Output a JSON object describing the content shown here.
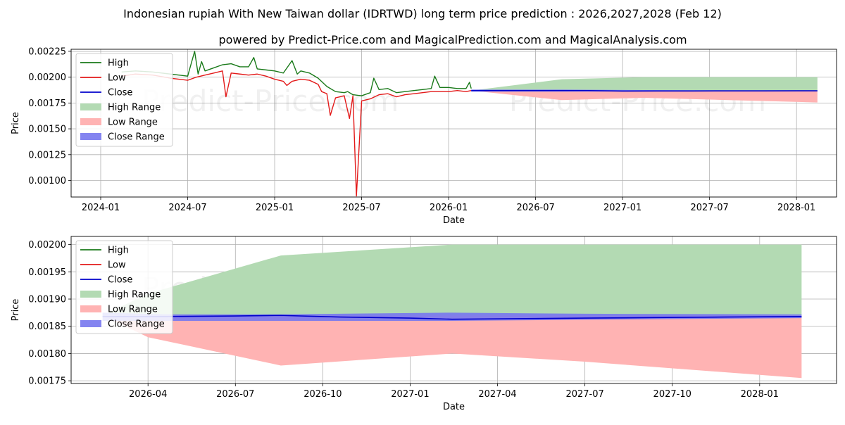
{
  "header": {
    "title": "Indonesian rupiah With New Taiwan dollar (IDRTWD) long term price prediction : 2026,2027,2028 (Feb 12)",
    "subtitle": "powered by Predict-Price.com and MagicalPrediction.com and MagicalAnalysis.com"
  },
  "watermark": "Predict-Price.com",
  "colors": {
    "high": "#1a7a1a",
    "low": "#e31a1a",
    "close": "#0000cc",
    "high_range": "#b3dab3",
    "low_range": "#ffb3b3",
    "close_range": "#7777ee",
    "grid": "#b0b0b0"
  },
  "chart_data": [
    {
      "type": "line",
      "panel": "top",
      "xlabel": "Date",
      "ylabel": "Price",
      "grid": true,
      "legend_position": "top-left",
      "xlim": [
        2023.83,
        2028.23
      ],
      "ylim": [
        0.00084,
        0.00227
      ],
      "x_ticks": [
        {
          "label": "2024-01",
          "x": 2024.0
        },
        {
          "label": "2024-07",
          "x": 2024.5
        },
        {
          "label": "2025-01",
          "x": 2025.0
        },
        {
          "label": "2025-07",
          "x": 2025.5
        },
        {
          "label": "2026-01",
          "x": 2026.0
        },
        {
          "label": "2026-07",
          "x": 2026.5
        },
        {
          "label": "2027-01",
          "x": 2027.0
        },
        {
          "label": "2027-07",
          "x": 2027.5
        },
        {
          "label": "2028-01",
          "x": 2028.0
        }
      ],
      "y_ticks": [
        {
          "label": "0.00100",
          "y": 0.001
        },
        {
          "label": "0.00125",
          "y": 0.00125
        },
        {
          "label": "0.00150",
          "y": 0.0015
        },
        {
          "label": "0.00175",
          "y": 0.00175
        },
        {
          "label": "0.00200",
          "y": 0.002
        },
        {
          "label": "0.00225",
          "y": 0.00225
        }
      ],
      "legend": [
        "High",
        "Low",
        "Close",
        "High Range",
        "Low Range",
        "Close Range"
      ],
      "series": [
        {
          "name": "High",
          "x": [
            2024.12,
            2024.2,
            2024.3,
            2024.4,
            2024.5,
            2024.54,
            2024.56,
            2024.58,
            2024.6,
            2024.65,
            2024.7,
            2024.75,
            2024.8,
            2024.85,
            2024.88,
            2024.9,
            2024.95,
            2025.0,
            2025.05,
            2025.1,
            2025.13,
            2025.15,
            2025.2,
            2025.25,
            2025.3,
            2025.35,
            2025.4,
            2025.42,
            2025.45,
            2025.5,
            2025.55,
            2025.57,
            2025.6,
            2025.65,
            2025.7,
            2025.75,
            2025.8,
            2025.85,
            2025.9,
            2025.92,
            2025.95,
            2026.0,
            2026.05,
            2026.1,
            2026.12,
            2026.13
          ],
          "y": [
            0.00205,
            0.00206,
            0.00205,
            0.00203,
            0.00201,
            0.00225,
            0.00203,
            0.00215,
            0.00206,
            0.00209,
            0.00212,
            0.00213,
            0.0021,
            0.0021,
            0.00219,
            0.00208,
            0.00207,
            0.00206,
            0.00204,
            0.00216,
            0.00203,
            0.00206,
            0.00204,
            0.00199,
            0.00191,
            0.00186,
            0.00185,
            0.00186,
            0.00183,
            0.00182,
            0.00185,
            0.00199,
            0.00188,
            0.00189,
            0.00185,
            0.00186,
            0.00187,
            0.00188,
            0.00189,
            0.00201,
            0.0019,
            0.0019,
            0.00189,
            0.00189,
            0.00195,
            0.00189
          ]
        },
        {
          "name": "Low",
          "x": [
            2024.12,
            2024.2,
            2024.3,
            2024.4,
            2024.5,
            2024.55,
            2024.6,
            2024.65,
            2024.7,
            2024.72,
            2024.75,
            2024.8,
            2024.85,
            2024.9,
            2024.95,
            2025.0,
            2025.05,
            2025.07,
            2025.1,
            2025.15,
            2025.2,
            2025.25,
            2025.27,
            2025.3,
            2025.32,
            2025.35,
            2025.4,
            2025.43,
            2025.45,
            2025.47,
            2025.5,
            2025.55,
            2025.6,
            2025.65,
            2025.7,
            2025.75,
            2025.8,
            2025.85,
            2025.9,
            2025.95,
            2026.0,
            2026.05,
            2026.1,
            2026.13
          ],
          "y": [
            0.00201,
            0.00203,
            0.00202,
            0.00199,
            0.00197,
            0.002,
            0.00202,
            0.00204,
            0.00206,
            0.00181,
            0.00204,
            0.00203,
            0.00202,
            0.00203,
            0.00201,
            0.00198,
            0.00196,
            0.00192,
            0.00196,
            0.00198,
            0.00197,
            0.00193,
            0.00186,
            0.00184,
            0.00163,
            0.0018,
            0.00182,
            0.0016,
            0.00182,
            0.00085,
            0.00177,
            0.00179,
            0.00183,
            0.00184,
            0.00181,
            0.00183,
            0.00184,
            0.00185,
            0.00186,
            0.00186,
            0.00186,
            0.00187,
            0.00186,
            0.00187
          ]
        },
        {
          "name": "Close",
          "x": [
            2026.13,
            2026.4,
            2026.6,
            2026.8,
            2027.0,
            2027.2,
            2027.4,
            2027.6,
            2027.8,
            2028.0,
            2028.12
          ],
          "y": [
            0.00187,
            0.00187,
            0.00187,
            0.00187,
            0.001865,
            0.001866,
            0.001866,
            0.001867,
            0.001867,
            0.001868,
            0.001868
          ]
        }
      ],
      "ranges": [
        {
          "name": "High Range",
          "x": [
            2026.13,
            2026.65,
            2027.12,
            2028.12
          ],
          "upper": [
            0.00187,
            0.00198,
            0.002,
            0.002
          ],
          "lower": [
            0.00187,
            0.00187,
            0.00187,
            0.00187
          ]
        },
        {
          "name": "Low Range",
          "x": [
            2026.13,
            2026.65,
            2027.12,
            2028.12
          ],
          "upper": [
            0.00187,
            0.00187,
            0.00187,
            0.00187
          ],
          "lower": [
            0.00187,
            0.001778,
            0.0018,
            0.001755
          ]
        },
        {
          "name": "Close Range",
          "x": [
            2026.13,
            2026.65,
            2027.12,
            2028.12
          ],
          "upper": [
            0.00188,
            0.00188,
            0.001875,
            0.001872
          ],
          "lower": [
            0.00186,
            0.00186,
            0.001862,
            0.001865
          ]
        }
      ]
    },
    {
      "type": "line",
      "panel": "bottom",
      "xlabel": "Date",
      "ylabel": "Price",
      "grid": true,
      "legend_position": "top-left",
      "xlim": [
        2026.03,
        2028.22
      ],
      "ylim": [
        0.001745,
        0.002015
      ],
      "x_ticks": [
        {
          "label": "2026-04",
          "x": 2026.25
        },
        {
          "label": "2026-07",
          "x": 2026.5
        },
        {
          "label": "2026-10",
          "x": 2026.75
        },
        {
          "label": "2027-01",
          "x": 2027.0
        },
        {
          "label": "2027-04",
          "x": 2027.25
        },
        {
          "label": "2027-07",
          "x": 2027.5
        },
        {
          "label": "2027-10",
          "x": 2027.75
        },
        {
          "label": "2028-01",
          "x": 2028.0
        }
      ],
      "y_ticks": [
        {
          "label": "0.00175",
          "y": 0.00175
        },
        {
          "label": "0.00180",
          "y": 0.0018
        },
        {
          "label": "0.00185",
          "y": 0.00185
        },
        {
          "label": "0.00190",
          "y": 0.0019
        },
        {
          "label": "0.00195",
          "y": 0.00195
        },
        {
          "label": "0.00200",
          "y": 0.002
        }
      ],
      "legend": [
        "High",
        "Low",
        "Close",
        "High Range",
        "Low Range",
        "Close Range"
      ],
      "series": [
        {
          "name": "Close",
          "x": [
            2026.12,
            2026.3,
            2026.5,
            2026.63,
            2026.8,
            2027.0,
            2027.12,
            2027.3,
            2027.5,
            2027.7,
            2027.9,
            2028.12
          ],
          "y": [
            0.001868,
            0.001868,
            0.001869,
            0.00187,
            0.001867,
            0.001865,
            0.001863,
            0.001864,
            0.001865,
            0.001866,
            0.001867,
            0.001868
          ]
        }
      ],
      "ranges": [
        {
          "name": "High Range",
          "x": [
            2026.12,
            2026.25,
            2026.63,
            2027.12,
            2027.5,
            2028.12
          ],
          "upper": [
            0.00187,
            0.00191,
            0.00198,
            0.002,
            0.002,
            0.002
          ],
          "lower": [
            0.00187,
            0.00187,
            0.00187,
            0.00187,
            0.00187,
            0.00187
          ]
        },
        {
          "name": "Low Range",
          "x": [
            2026.12,
            2026.25,
            2026.63,
            2027.12,
            2027.5,
            2028.12
          ],
          "upper": [
            0.00187,
            0.00187,
            0.00187,
            0.00187,
            0.00187,
            0.00187
          ],
          "lower": [
            0.00187,
            0.00183,
            0.001778,
            0.0018,
            0.001785,
            0.001755
          ]
        },
        {
          "name": "Close Range",
          "x": [
            2026.12,
            2026.3,
            2026.63,
            2027.12,
            2027.5,
            2028.12
          ],
          "upper": [
            0.001875,
            0.001872,
            0.001872,
            0.001875,
            0.001873,
            0.001872
          ],
          "lower": [
            0.00186,
            0.00186,
            0.00186,
            0.00186,
            0.001862,
            0.001865
          ]
        }
      ]
    }
  ]
}
